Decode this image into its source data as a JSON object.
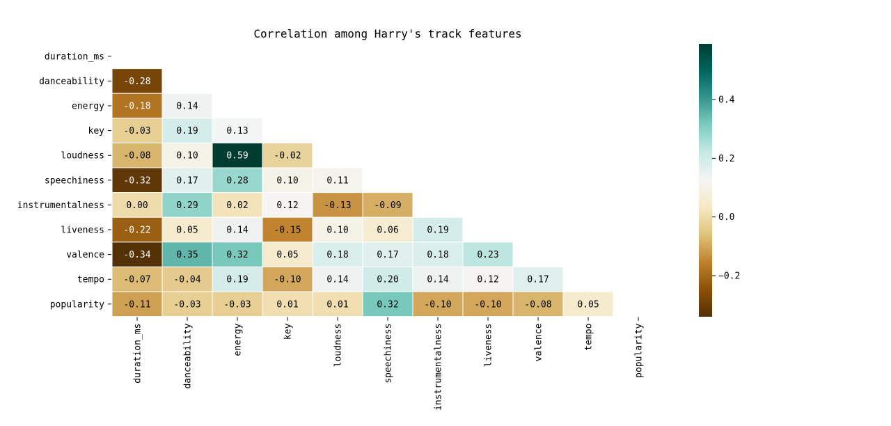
{
  "chart_data": {
    "type": "heatmap",
    "title": "Correlation among Harry's track features",
    "rows": [
      "duration_ms",
      "danceability",
      "energy",
      "key",
      "loudness",
      "speechiness",
      "instrumentalness",
      "liveness",
      "valence",
      "tempo",
      "popularity"
    ],
    "columns": [
      "duration_ms",
      "danceability",
      "energy",
      "key",
      "loudness",
      "speechiness",
      "instrumentalness",
      "liveness",
      "valence",
      "tempo",
      "popularity"
    ],
    "mask": "upper-triangle-including-diagonal",
    "values": [
      [],
      [
        "-0.28"
      ],
      [
        "-0.18",
        "0.14"
      ],
      [
        "-0.03",
        "0.19",
        "0.13"
      ],
      [
        "-0.08",
        "0.10",
        "0.59",
        "-0.02"
      ],
      [
        "-0.32",
        "0.17",
        "0.28",
        "0.10",
        "0.11"
      ],
      [
        "0.00",
        "0.29",
        "0.02",
        "0.12",
        "-0.13",
        "-0.09"
      ],
      [
        "-0.22",
        "0.05",
        "0.14",
        "-0.15",
        "0.10",
        "0.06",
        "0.19"
      ],
      [
        "-0.34",
        "0.35",
        "0.32",
        "0.05",
        "0.18",
        "0.17",
        "0.18",
        "0.23"
      ],
      [
        "-0.07",
        "-0.04",
        "0.19",
        "-0.10",
        "0.14",
        "0.20",
        "0.14",
        "0.12",
        "0.17"
      ],
      [
        "-0.11",
        "-0.03",
        "-0.03",
        "0.01",
        "0.01",
        "0.32",
        "-0.10",
        "-0.10",
        "-0.08",
        "0.05"
      ]
    ],
    "colorbar": {
      "range": [
        -0.34,
        0.59
      ],
      "ticks": [
        "0.4",
        "0.2",
        "0.0",
        "−0.2"
      ],
      "tick_values": [
        0.4,
        0.2,
        0.0,
        -0.2
      ]
    },
    "colormap": {
      "name": "BrBG",
      "stops": [
        "#543005",
        "#8c510a",
        "#bf812d",
        "#dfc27d",
        "#f6e8c3",
        "#f5f5f5",
        "#c7eae5",
        "#80cdc1",
        "#35978f",
        "#01665e",
        "#003c30"
      ]
    },
    "grid": false,
    "legend": "right"
  }
}
